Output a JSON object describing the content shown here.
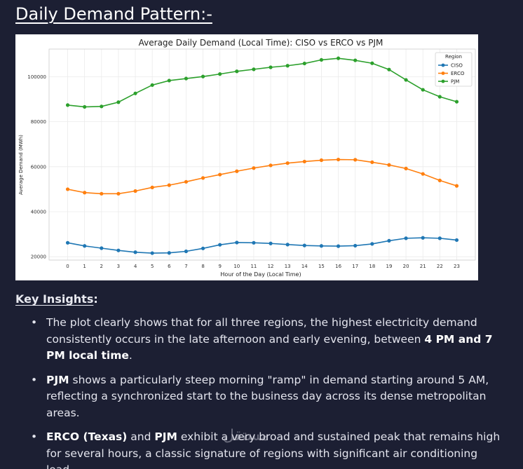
{
  "page": {
    "heading": "Daily Demand Pattern:-"
  },
  "chart_data": {
    "type": "line",
    "title": "Average Daily Demand (Local Time): CISO vs ERCO vs PJM",
    "xlabel": "Hour of the Day (Local Time)",
    "ylabel": "Average Demand (MWh)",
    "x": [
      0,
      1,
      2,
      3,
      4,
      5,
      6,
      7,
      8,
      9,
      10,
      11,
      12,
      13,
      14,
      15,
      16,
      17,
      18,
      19,
      20,
      21,
      22,
      23
    ],
    "xticks": [
      "0",
      "1",
      "2",
      "3",
      "4",
      "5",
      "6",
      "7",
      "8",
      "9",
      "10",
      "11",
      "12",
      "13",
      "14",
      "15",
      "16",
      "17",
      "18",
      "19",
      "20",
      "21",
      "22",
      "23"
    ],
    "yticks": [
      20000,
      40000,
      60000,
      80000,
      100000
    ],
    "ytick_labels": [
      "20000",
      "40000",
      "60000",
      "80000",
      "100000"
    ],
    "ylim": [
      18500,
      112300
    ],
    "xlim": [
      -1.1,
      24.1
    ],
    "grid": true,
    "legend": {
      "title": "Region",
      "placement": "top-right"
    },
    "series": [
      {
        "name": "CISO",
        "color": "#1f77b4",
        "values": [
          26200,
          24800,
          23800,
          22800,
          22000,
          21600,
          21700,
          22400,
          23700,
          25300,
          26300,
          26200,
          25900,
          25400,
          25000,
          24800,
          24700,
          24900,
          25700,
          27100,
          28200,
          28400,
          28200,
          27400
        ]
      },
      {
        "name": "ERCO",
        "color": "#ff7f0e",
        "values": [
          50000,
          48500,
          48000,
          48000,
          49200,
          50800,
          51800,
          53300,
          55000,
          56500,
          58000,
          59400,
          60600,
          61600,
          62300,
          62900,
          63200,
          63100,
          62000,
          60800,
          59200,
          56800,
          53900,
          51500
        ]
      },
      {
        "name": "PJM",
        "color": "#2ca02c",
        "values": [
          87400,
          86600,
          86800,
          88700,
          92600,
          96300,
          98300,
          99200,
          100100,
          101200,
          102400,
          103300,
          104200,
          104900,
          105900,
          107500,
          108200,
          107300,
          106000,
          103200,
          98600,
          94200,
          91100,
          88900
        ]
      }
    ]
  },
  "insights": {
    "title": "Key Insights",
    "colon": ":",
    "bullets": [
      {
        "parts": [
          {
            "text": "The plot clearly shows that for all three regions, the highest electricity demand consistently occurs in the late afternoon and early evening, between ",
            "bold": false
          },
          {
            "text": "4 PM and 7 PM local time",
            "bold": true
          },
          {
            "text": ".",
            "bold": false
          }
        ]
      },
      {
        "parts": [
          {
            "text": "PJM",
            "bold": true
          },
          {
            "text": " shows a particularly steep morning \"ramp\" in demand starting around 5 AM, reflecting a synchronized start to the business day across its dense metropolitan areas.",
            "bold": false
          }
        ]
      },
      {
        "parts": [
          {
            "text": "ERCO (Texas)",
            "bold": true
          },
          {
            "text": " and ",
            "bold": false
          },
          {
            "text": "PJM",
            "bold": true
          },
          {
            "text": " exhibit a very broad and sustained peak that remains high for several hours, a classic signature of regions with significant air conditioning load.",
            "bold": false
          }
        ]
      }
    ]
  },
  "watermark": {
    "text": "مستقل"
  }
}
